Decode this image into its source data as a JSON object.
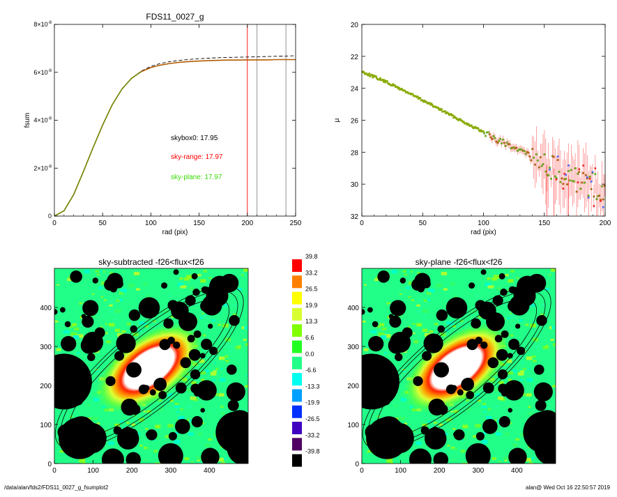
{
  "chart_data": [
    {
      "type": "line",
      "title": "FDS11_0027_g",
      "xlabel": "rad (pix)",
      "ylabel": "fsum",
      "xlim": [
        0,
        250
      ],
      "ylim": [
        0,
        8e-08
      ],
      "xticks": [
        "0",
        "50",
        "100",
        "150",
        "200",
        "250"
      ],
      "yticks": [
        {
          "value": 0,
          "mant": "0",
          "exp": ""
        },
        {
          "value": 2e-08,
          "mant": "2×10",
          "exp": "-8"
        },
        {
          "value": 4e-08,
          "mant": "4×10",
          "exp": "-8"
        },
        {
          "value": 6e-08,
          "mant": "6×10",
          "exp": "-8"
        },
        {
          "value": 8e-08,
          "mant": "8×10",
          "exp": "-8"
        }
      ],
      "series": [
        {
          "style": "dashed",
          "color": "#000000",
          "x": [
            0,
            10,
            20,
            30,
            40,
            50,
            60,
            70,
            80,
            90,
            100,
            110,
            120,
            130,
            140,
            150,
            160,
            170,
            180,
            190,
            200,
            210,
            220,
            230,
            240,
            250
          ],
          "y": [
            0,
            2.2e-09,
            9e-09,
            1.85e-08,
            2.85e-08,
            3.8e-08,
            4.65e-08,
            5.3e-08,
            5.75e-08,
            6.05e-08,
            6.25e-08,
            6.37e-08,
            6.45e-08,
            6.5e-08,
            6.54e-08,
            6.57e-08,
            6.59e-08,
            6.61e-08,
            6.62e-08,
            6.63e-08,
            6.64e-08,
            6.65e-08,
            6.66e-08,
            6.67e-08,
            6.68e-08,
            6.69e-08
          ]
        },
        {
          "style": "solid",
          "color": "#b35a00",
          "x": [
            0,
            10,
            20,
            30,
            40,
            50,
            60,
            70,
            80,
            90,
            100,
            110,
            120,
            130,
            140,
            150,
            160,
            170,
            180,
            190,
            200,
            210,
            220,
            230,
            240,
            250
          ],
          "y": [
            0,
            2.2e-09,
            9e-09,
            1.85e-08,
            2.85e-08,
            3.8e-08,
            4.65e-08,
            5.3e-08,
            5.75e-08,
            6.03e-08,
            6.2e-08,
            6.3e-08,
            6.37e-08,
            6.42e-08,
            6.45e-08,
            6.47e-08,
            6.49e-08,
            6.5e-08,
            6.51e-08,
            6.51e-08,
            6.52e-08,
            6.52e-08,
            6.52e-08,
            6.53e-08,
            6.53e-08,
            6.53e-08
          ]
        }
      ],
      "vlines": [
        {
          "x": 200,
          "color": "#ff0000"
        },
        {
          "x": 210,
          "color": "#888888"
        },
        {
          "x": 240,
          "color": "#888888"
        }
      ],
      "annotations": [
        {
          "text": "skybox0: 17.95",
          "color": "#000000"
        },
        {
          "text": "sky-range: 17.97",
          "color": "#ff0000"
        },
        {
          "text": "sky-plane: 17.97",
          "color": "#33dd00"
        }
      ]
    },
    {
      "type": "scatter",
      "xlabel": "rad (pix)",
      "ylabel": "μ",
      "xlim": [
        0,
        200
      ],
      "ylim": [
        32,
        20
      ],
      "xticks": [
        "0",
        "50",
        "100",
        "150",
        "200"
      ],
      "yticks": [
        "20",
        "22",
        "24",
        "26",
        "28",
        "30",
        "32"
      ],
      "trend": {
        "x": [
          0,
          20,
          40,
          60,
          80,
          100,
          120,
          140,
          160,
          180,
          200
        ],
        "y": [
          22.95,
          23.6,
          24.35,
          25.15,
          25.95,
          26.75,
          27.55,
          28.35,
          29.1,
          29.8,
          30.4
        ]
      }
    },
    {
      "type": "heatmap",
      "title": "sky-subtracted -f26<flux<f26",
      "xlim": [
        0,
        500
      ],
      "ylim": [
        0,
        500
      ],
      "xticks": [
        "0",
        "100",
        "200",
        "300",
        "400"
      ],
      "yticks": [
        "0",
        "100",
        "200",
        "300",
        "400"
      ]
    },
    {
      "type": "heatmap",
      "title": "sky-plane -f26<flux<f26",
      "xlim": [
        0,
        500
      ],
      "ylim": [
        0,
        500
      ],
      "xticks": [
        "0",
        "100",
        "200",
        "300",
        "400"
      ],
      "yticks": [
        "0",
        "100",
        "200",
        "300",
        "400"
      ]
    },
    {
      "type": "colorbar",
      "levels": [
        {
          "label": "39.8",
          "color": "#ff0000"
        },
        {
          "label": "33.2",
          "color": "#ff8000"
        },
        {
          "label": "26.5",
          "color": "#ffff00"
        },
        {
          "label": "19.9",
          "color": "#d8ff30"
        },
        {
          "label": "13.3",
          "color": "#80ff00"
        },
        {
          "label": "6.6",
          "color": "#22ff22"
        },
        {
          "label": "0.0",
          "color": "#22ff88"
        },
        {
          "label": "-6.6",
          "color": "#00ffee"
        },
        {
          "label": "-13.3",
          "color": "#00a0ff"
        },
        {
          "label": "-19.9",
          "color": "#0030ff"
        },
        {
          "label": "-26.5",
          "color": "#4000c0"
        },
        {
          "label": "-33.2",
          "color": "#500060"
        },
        {
          "label": "-39.8",
          "color": "#000000"
        }
      ]
    }
  ],
  "footer": {
    "left": "/data/alan/fds2/FDS11_0027_g_fsumplot2",
    "right": "alan@  Wed Oct 16 22:50:57 2019"
  }
}
